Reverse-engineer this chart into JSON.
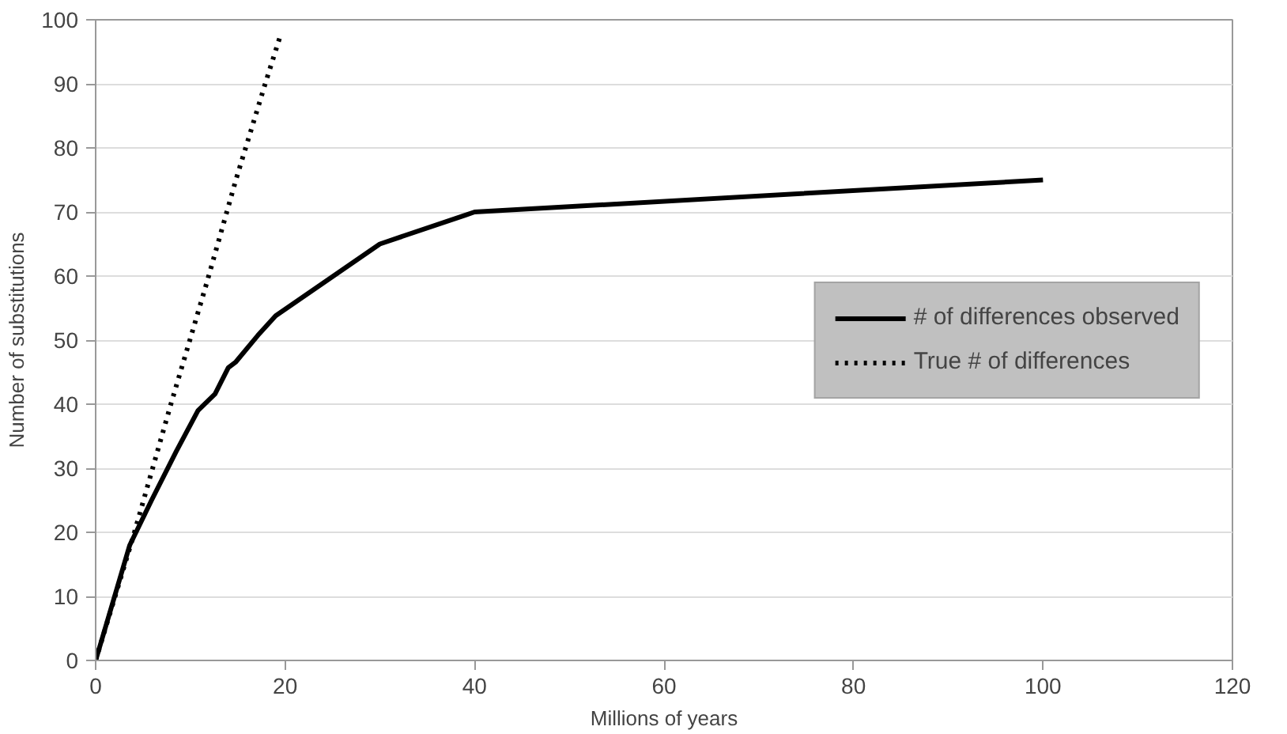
{
  "chart_data": {
    "type": "line",
    "xlabel": "Millions of years",
    "ylabel": "Number of substitutions",
    "xlim": [
      0,
      120
    ],
    "ylim": [
      0,
      100
    ],
    "xticks": [
      0,
      20,
      40,
      60,
      80,
      100,
      120
    ],
    "yticks": [
      0,
      10,
      20,
      30,
      40,
      50,
      60,
      70,
      80,
      90,
      100
    ],
    "grid": "y",
    "legend": "right",
    "series": [
      {
        "name": "# of differences observed",
        "color": "#000000",
        "line_style": "solid",
        "x": [
          0,
          3.6,
          5.9,
          8.5,
          10.8,
          12.6,
          14,
          14.8,
          17.1,
          19,
          30,
          39,
          40,
          100
        ],
        "values": [
          0,
          18,
          25,
          32.6,
          39,
          41.6,
          45.7,
          46.6,
          50.7,
          53.8,
          65,
          69.5,
          70,
          75
        ]
      },
      {
        "name": "True # of differences",
        "color": "#000000",
        "line_style": "dotted",
        "x": [
          0,
          3.9,
          7.9,
          11.7,
          14.8,
          18,
          19.6
        ],
        "values": [
          0,
          19,
          39.8,
          58.8,
          75,
          90.5,
          98
        ]
      }
    ]
  }
}
